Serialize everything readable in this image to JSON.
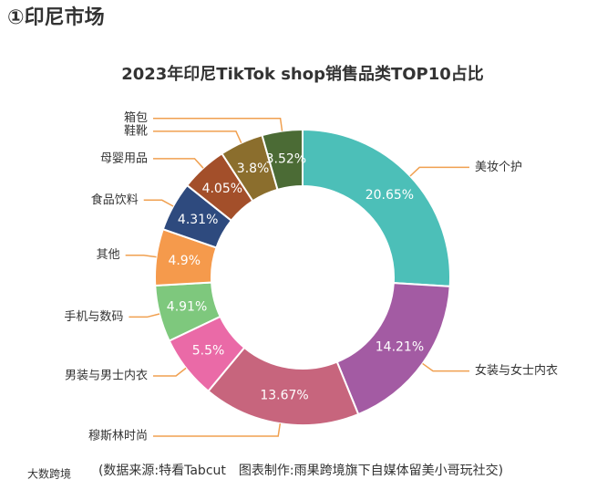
{
  "header": "①印尼市场",
  "chart_data": {
    "type": "donut",
    "title": "2023年印尼TikTok shop销售品类TOP10占比",
    "categories": [
      "美妆个护",
      "女装与女士内衣",
      "穆斯林时尚",
      "男装与男士内衣",
      "手机与数码",
      "其他",
      "食品饮料",
      "母婴用品",
      "鞋靴",
      "箱包"
    ],
    "values": [
      20.65,
      14.21,
      13.67,
      5.5,
      4.91,
      4.9,
      4.31,
      4.05,
      3.8,
      3.52
    ],
    "value_labels": [
      "20.65%",
      "14.21%",
      "13.67%",
      "5.5%",
      "4.91%",
      "4.9%",
      "4.31%",
      "4.05%",
      "3.8%",
      "3.52%"
    ],
    "colors": [
      "#4cbfb8",
      "#a35ba3",
      "#c7657d",
      "#ea6aa7",
      "#7ec87d",
      "#f59a4c",
      "#2e4a7e",
      "#a34f2a",
      "#8b6e2d",
      "#4b6b35"
    ],
    "source": "(数据来源:特看Tabcut　图表制作:雨果跨境旗下自媒体留美小哥玩社交)"
  },
  "watermark": "大数跨境"
}
